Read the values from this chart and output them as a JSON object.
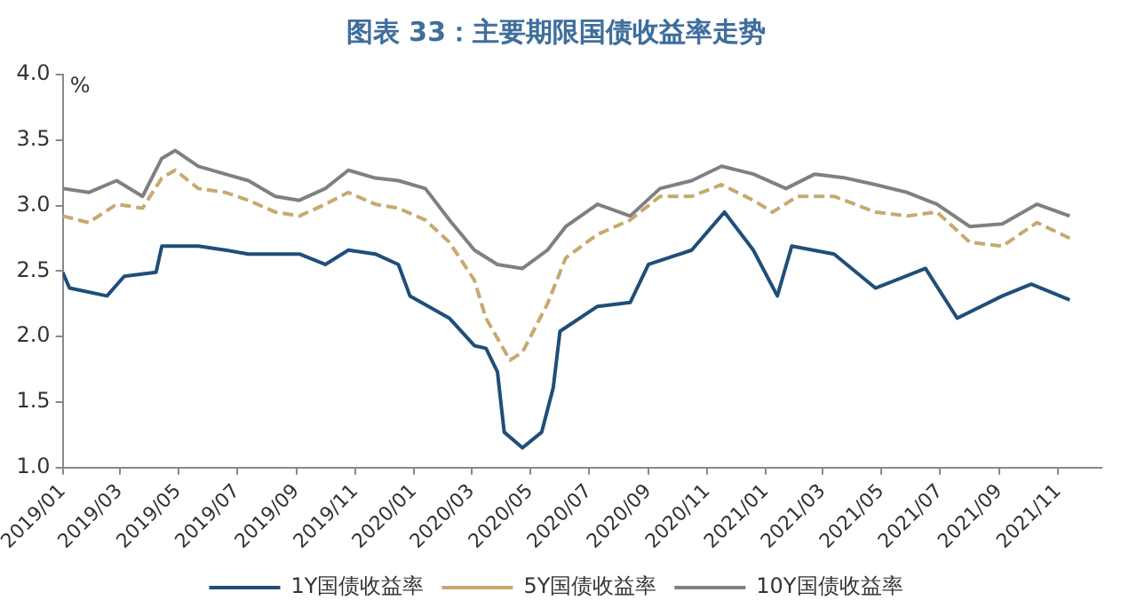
{
  "chart_data": {
    "type": "line",
    "title": "图表 33：主要期限国债收益率走势",
    "ylabel": "%",
    "xlim": [
      "2019-01-01",
      "2021-12-16"
    ],
    "xticks": [
      {
        "value": "2019-01",
        "label": "2019/01"
      },
      {
        "value": "2019-03",
        "label": "2019/03"
      },
      {
        "value": "2019-05",
        "label": "2019/05"
      },
      {
        "value": "2019-07",
        "label": "2019/07"
      },
      {
        "value": "2019-09",
        "label": "2019/09"
      },
      {
        "value": "2019-11",
        "label": "2019/11"
      },
      {
        "value": "2020-01",
        "label": "2020/01"
      },
      {
        "value": "2020-03",
        "label": "2020/03"
      },
      {
        "value": "2020-05",
        "label": "2020/05"
      },
      {
        "value": "2020-07",
        "label": "2020/07"
      },
      {
        "value": "2020-09",
        "label": "2020/09"
      },
      {
        "value": "2020-11",
        "label": "2020/11"
      },
      {
        "value": "2021-01",
        "label": "2021/01"
      },
      {
        "value": "2021-03",
        "label": "2021/03"
      },
      {
        "value": "2021-05",
        "label": "2021/05"
      },
      {
        "value": "2021-07",
        "label": "2021/07"
      },
      {
        "value": "2021-09",
        "label": "2021/09"
      },
      {
        "value": "2021-11",
        "label": "2021/11"
      }
    ],
    "ylim": [
      1,
      4
    ],
    "yticks": [
      {
        "value": 1,
        "label": "1.0"
      },
      {
        "value": 1.5,
        "label": "1.5"
      },
      {
        "value": 2,
        "label": "2.0"
      },
      {
        "value": 2.5,
        "label": "2.5"
      },
      {
        "value": 3,
        "label": "3.0"
      },
      {
        "value": 3.5,
        "label": "3.5"
      },
      {
        "value": 4,
        "label": "4.0"
      }
    ],
    "grid": false,
    "legend": "bottom",
    "marker": "none",
    "series": [
      {
        "name": "1Y国债收益率",
        "color": "#1f4e79",
        "line_style": "solid",
        "x": [
          "2019-01-01",
          "2019-01-08",
          "2019-02-16",
          "2019-03-06",
          "2019-04-08",
          "2019-04-14",
          "2019-05-22",
          "2019-06-19",
          "2019-07-13",
          "2019-08-10",
          "2019-09-04",
          "2019-10-01",
          "2019-10-25",
          "2019-11-22",
          "2019-12-16",
          "2019-12-28",
          "2020-02-07",
          "2020-03-04",
          "2020-03-16",
          "2020-03-28",
          "2020-04-04",
          "2020-04-23",
          "2020-05-13",
          "2020-05-25",
          "2020-06-01",
          "2020-07-10",
          "2020-08-13",
          "2020-09-01",
          "2020-10-16",
          "2020-11-19",
          "2020-12-19",
          "2021-01-13",
          "2021-01-28",
          "2021-03-13",
          "2021-04-25",
          "2021-06-16",
          "2021-07-19",
          "2021-09-04",
          "2021-10-04",
          "2021-11-13"
        ],
        "values": [
          2.49,
          2.37,
          2.31,
          2.46,
          2.49,
          2.69,
          2.69,
          2.66,
          2.63,
          2.63,
          2.63,
          2.55,
          2.66,
          2.63,
          2.55,
          2.31,
          2.14,
          1.93,
          1.91,
          1.73,
          1.27,
          1.15,
          1.27,
          1.61,
          2.04,
          2.23,
          2.26,
          2.55,
          2.66,
          2.95,
          2.66,
          2.31,
          2.69,
          2.63,
          2.37,
          2.52,
          2.14,
          2.31,
          2.4,
          2.28
        ]
      },
      {
        "name": "5Y国债收益率",
        "color": "#c8a96e",
        "line_style": "dashed",
        "x": [
          "2019-01-01",
          "2019-01-28",
          "2019-02-26",
          "2019-03-25",
          "2019-04-14",
          "2019-04-28",
          "2019-05-22",
          "2019-06-19",
          "2019-07-13",
          "2019-08-10",
          "2019-09-04",
          "2019-10-01",
          "2019-10-25",
          "2019-11-22",
          "2019-12-16",
          "2020-01-13",
          "2020-02-07",
          "2020-03-04",
          "2020-03-16",
          "2020-04-10",
          "2020-04-23",
          "2020-05-19",
          "2020-06-07",
          "2020-07-10",
          "2020-08-13",
          "2020-09-13",
          "2020-10-16",
          "2020-11-16",
          "2020-12-19",
          "2021-01-08",
          "2021-02-03",
          "2021-03-13",
          "2021-04-25",
          "2021-05-28",
          "2021-06-28",
          "2021-08-01",
          "2021-09-04",
          "2021-10-10",
          "2021-11-13"
        ],
        "values": [
          2.92,
          2.87,
          3.01,
          2.98,
          3.21,
          3.27,
          3.13,
          3.1,
          3.04,
          2.95,
          2.92,
          3.01,
          3.1,
          3.01,
          2.98,
          2.89,
          2.72,
          2.43,
          2.14,
          1.82,
          1.88,
          2.25,
          2.6,
          2.78,
          2.89,
          3.07,
          3.07,
          3.16,
          3.04,
          2.95,
          3.07,
          3.07,
          2.95,
          2.92,
          2.95,
          2.72,
          2.69,
          2.87,
          2.75
        ]
      },
      {
        "name": "10Y国债收益率",
        "color": "#808080",
        "line_style": "solid",
        "x": [
          "2019-01-01",
          "2019-01-28",
          "2019-02-26",
          "2019-03-25",
          "2019-04-14",
          "2019-04-28",
          "2019-05-22",
          "2019-06-19",
          "2019-07-13",
          "2019-08-10",
          "2019-09-04",
          "2019-10-01",
          "2019-10-25",
          "2019-11-22",
          "2019-12-16",
          "2020-01-13",
          "2020-02-07",
          "2020-03-04",
          "2020-03-28",
          "2020-04-23",
          "2020-05-19",
          "2020-06-07",
          "2020-07-10",
          "2020-08-13",
          "2020-09-13",
          "2020-10-16",
          "2020-11-16",
          "2020-12-19",
          "2021-01-22",
          "2021-02-21",
          "2021-03-25",
          "2021-04-25",
          "2021-05-28",
          "2021-06-28",
          "2021-08-01",
          "2021-09-04",
          "2021-10-10",
          "2021-11-13"
        ],
        "values": [
          3.13,
          3.1,
          3.19,
          3.07,
          3.36,
          3.42,
          3.3,
          3.24,
          3.19,
          3.07,
          3.04,
          3.13,
          3.27,
          3.21,
          3.19,
          3.13,
          2.89,
          2.66,
          2.55,
          2.52,
          2.66,
          2.84,
          3.01,
          2.92,
          3.13,
          3.19,
          3.3,
          3.24,
          3.13,
          3.24,
          3.21,
          3.16,
          3.1,
          3.01,
          2.84,
          2.86,
          3.01,
          2.92
        ]
      }
    ]
  }
}
